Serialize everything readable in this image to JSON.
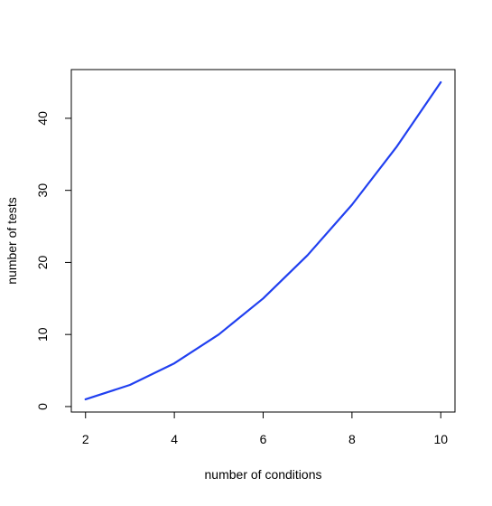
{
  "chart_data": {
    "type": "line",
    "title": "",
    "xlabel": "number of conditions",
    "ylabel": "number of tests",
    "x": [
      2,
      3,
      4,
      5,
      6,
      7,
      8,
      9,
      10
    ],
    "series": [
      {
        "values": [
          1,
          3,
          6,
          10,
          15,
          21,
          28,
          36,
          45
        ],
        "color": "#2140f0"
      }
    ],
    "xlim": [
      1.68,
      10.32
    ],
    "ylim": [
      -0.76,
      46.76
    ],
    "xticks": [
      2,
      4,
      6,
      8,
      10
    ],
    "yticks": [
      0,
      10,
      20,
      30,
      40
    ],
    "grid": false,
    "legend": "none"
  }
}
